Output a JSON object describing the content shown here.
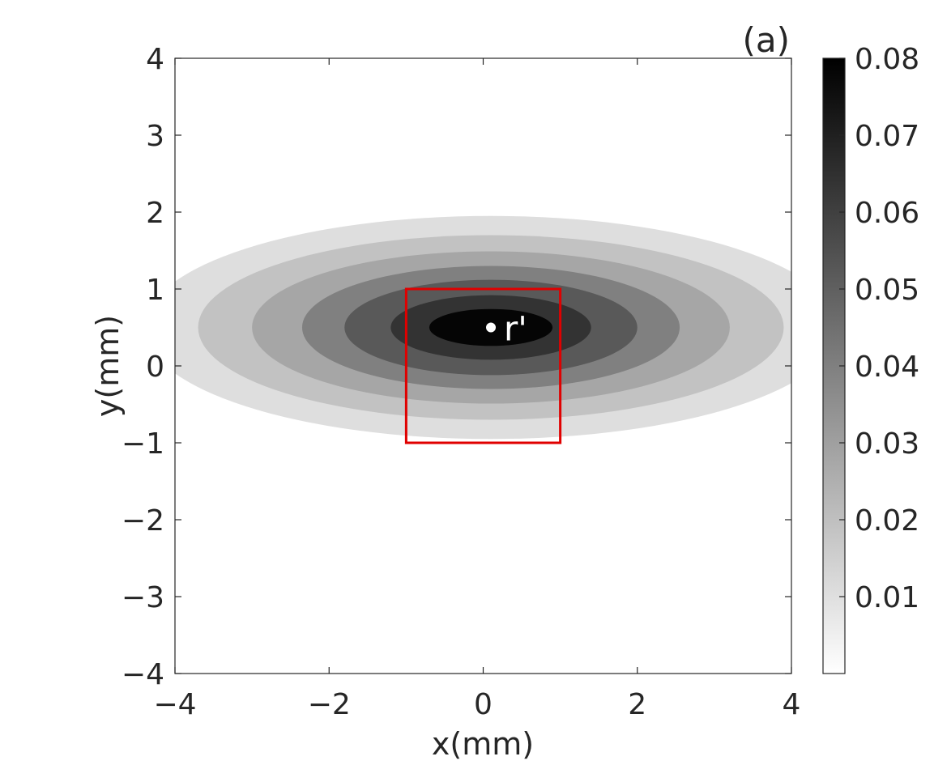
{
  "chart_data": {
    "type": "contour",
    "panel_label": "(a)",
    "xlabel": "x(mm)",
    "ylabel": "y(mm)",
    "xlim": [
      -4,
      4
    ],
    "ylim": [
      -4,
      4
    ],
    "xticks": [
      -4,
      -2,
      0,
      2,
      4
    ],
    "xtick_labels": [
      "−4",
      "−2",
      "0",
      "2",
      "4"
    ],
    "yticks": [
      -4,
      -3,
      -2,
      -1,
      0,
      1,
      2,
      3,
      4
    ],
    "ytick_labels": [
      "−4",
      "−3",
      "−2",
      "−1",
      "0",
      "1",
      "2",
      "3",
      "4"
    ],
    "grid": false,
    "source_point": {
      "label": "r'",
      "x": 0.1,
      "y": 0.5
    },
    "center": {
      "x": 0.1,
      "y": 0.5
    },
    "contour_bands": [
      {
        "level": 0.01,
        "half_width_x": 4.5,
        "half_height_y": 1.45,
        "color": "#dedede"
      },
      {
        "level": 0.02,
        "half_width_x": 3.8,
        "half_height_y": 1.2,
        "color": "#c2c2c2"
      },
      {
        "level": 0.03,
        "half_width_x": 3.1,
        "half_height_y": 0.99,
        "color": "#a6a6a6"
      },
      {
        "level": 0.04,
        "half_width_x": 2.45,
        "half_height_y": 0.8,
        "color": "#808080"
      },
      {
        "level": 0.05,
        "half_width_x": 1.9,
        "half_height_y": 0.62,
        "color": "#595959"
      },
      {
        "level": 0.06,
        "half_width_x": 1.3,
        "half_height_y": 0.42,
        "color": "#333333"
      },
      {
        "level": 0.07,
        "half_width_x": 0.8,
        "half_height_y": 0.24,
        "color": "#050505"
      }
    ],
    "highlight_box": {
      "x0": -1,
      "x1": 1,
      "y0": -1,
      "y1": 1,
      "color": "#e00000"
    },
    "colorbar": {
      "range": [
        0,
        0.08
      ],
      "ticks": [
        0.01,
        0.02,
        0.03,
        0.04,
        0.05,
        0.06,
        0.07,
        0.08
      ],
      "tick_labels": [
        "0.01",
        "0.02",
        "0.03",
        "0.04",
        "0.05",
        "0.06",
        "0.07",
        "0.08"
      ]
    }
  }
}
